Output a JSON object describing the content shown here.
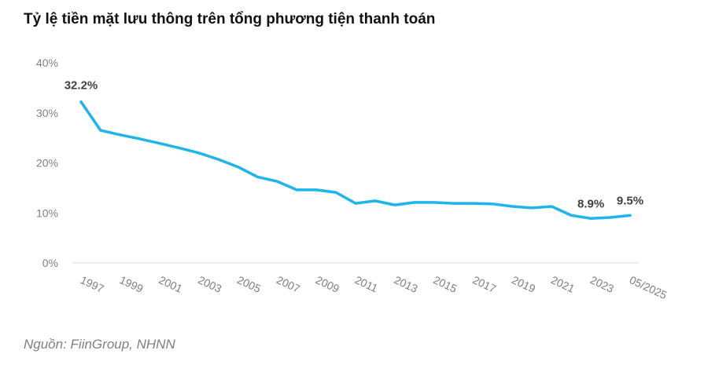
{
  "title": "Tỷ lệ tiền mặt lưu thông trên tổng phương tiện thanh toán",
  "source": "Nguồn: FiinGroup, NHNN",
  "chart_data": {
    "type": "line",
    "title": "Tỷ lệ tiền mặt lưu thông trên tổng phương tiện thanh toán",
    "xlabel": "",
    "ylabel": "",
    "ylim": [
      0,
      40
    ],
    "y_ticks": [
      "0%",
      "10%",
      "20%",
      "30%",
      "40%"
    ],
    "x_tick_labels": [
      "1997",
      "1999",
      "2001",
      "2003",
      "2005",
      "2007",
      "2009",
      "2011",
      "2013",
      "2015",
      "2017",
      "2019",
      "2021",
      "2023",
      "05/2025"
    ],
    "grid": false,
    "legend": "none",
    "line_color": "#1fb4ea",
    "series": [
      {
        "x": [
          "1997",
          "1998",
          "1999",
          "2000",
          "2001",
          "2002",
          "2003",
          "2004",
          "2005",
          "2006",
          "2007",
          "2008",
          "2009",
          "2010",
          "2011",
          "2012",
          "2013",
          "2014",
          "2015",
          "2016",
          "2017",
          "2018",
          "2019",
          "2020",
          "2021",
          "2022",
          "2023",
          "2024",
          "05/2025"
        ],
        "values": [
          32.2,
          26.5,
          25.6,
          24.8,
          23.9,
          23.0,
          22.0,
          20.7,
          19.2,
          17.2,
          16.3,
          14.6,
          14.6,
          14.1,
          11.9,
          12.4,
          11.6,
          12.1,
          12.1,
          11.9,
          11.9,
          11.8,
          11.3,
          11.0,
          11.3,
          9.5,
          8.9,
          9.1,
          9.5
        ]
      }
    ],
    "data_labels": [
      {
        "x": "1997",
        "text": "32.2%"
      },
      {
        "x": "2023",
        "text": "8.9%"
      },
      {
        "x": "05/2025",
        "text": "9.5%"
      }
    ]
  }
}
